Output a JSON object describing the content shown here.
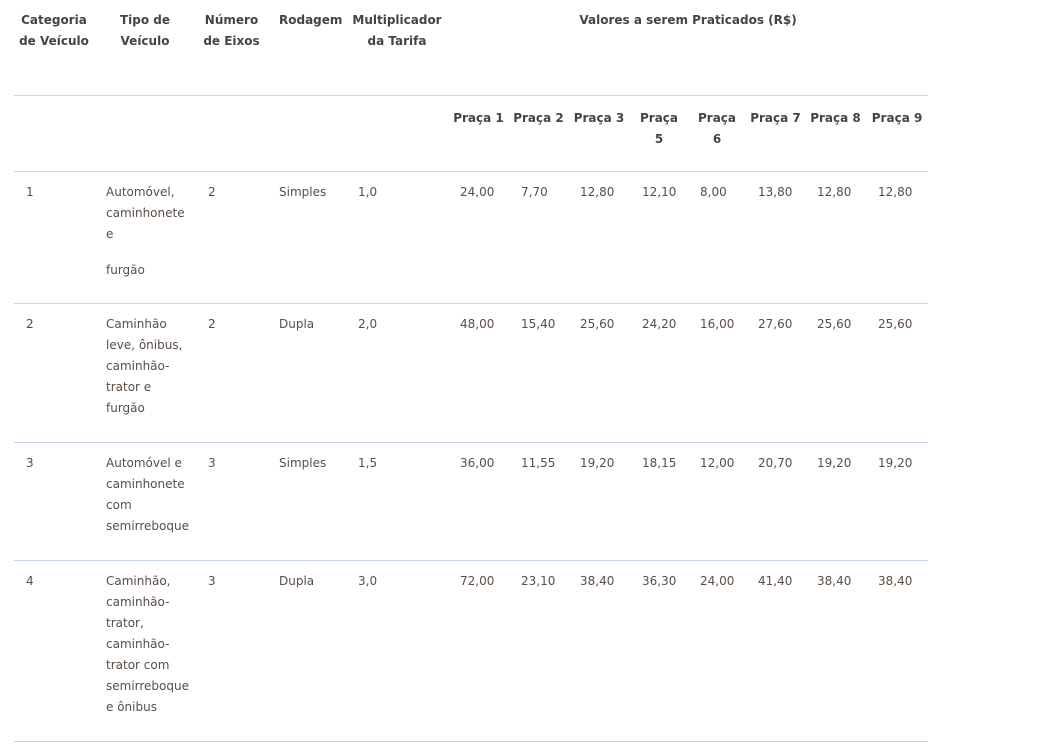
{
  "headers": {
    "categoria": "Categoria de Veículo",
    "tipo": "Tipo de Veículo",
    "eixos": "Número de Eixos",
    "rodagem": "Rodagem",
    "multiplicador": "Multiplicador da Tarifa",
    "valores": "Valores a serem Praticados (R$)",
    "pracas": [
      "Praça 1",
      "Praça 2",
      "Praça 3",
      "Praça 5",
      "Praça 6",
      "Praça 7",
      "Praça 8",
      "Praça 9"
    ]
  },
  "rows": [
    {
      "categoria": "1",
      "tipo": [
        "Automóvel, caminhonete e",
        "furgão"
      ],
      "eixos": "2",
      "rodagem": "Simples",
      "multiplicador": "1,0",
      "valores": [
        "24,00",
        "7,70",
        "12,80",
        "12,10",
        "8,00",
        "13,80",
        "12,80",
        "12,80"
      ]
    },
    {
      "categoria": "2",
      "tipo": [
        "Caminhão leve, ônibus, caminhão-trator e furgão"
      ],
      "eixos": "2",
      "rodagem": "Dupla",
      "multiplicador": "2,0",
      "valores": [
        "48,00",
        "15,40",
        "25,60",
        "24,20",
        "16,00",
        "27,60",
        "25,60",
        "25,60"
      ]
    },
    {
      "categoria": "3",
      "tipo": [
        "Automóvel e caminhonete com semirreboque"
      ],
      "eixos": "3",
      "rodagem": "Simples",
      "multiplicador": "1,5",
      "valores": [
        "36,00",
        "11,55",
        "19,20",
        "18,15",
        "12,00",
        "20,70",
        "19,20",
        "19,20"
      ]
    },
    {
      "categoria": "4",
      "tipo": [
        "Caminhão, caminhão-trator, caminhão-trator com semirreboque e ônibus"
      ],
      "eixos": "3",
      "rodagem": "Dupla",
      "multiplicador": "3,0",
      "valores": [
        "72,00",
        "23,10",
        "38,40",
        "36,30",
        "24,00",
        "41,40",
        "38,40",
        "38,40"
      ]
    }
  ]
}
